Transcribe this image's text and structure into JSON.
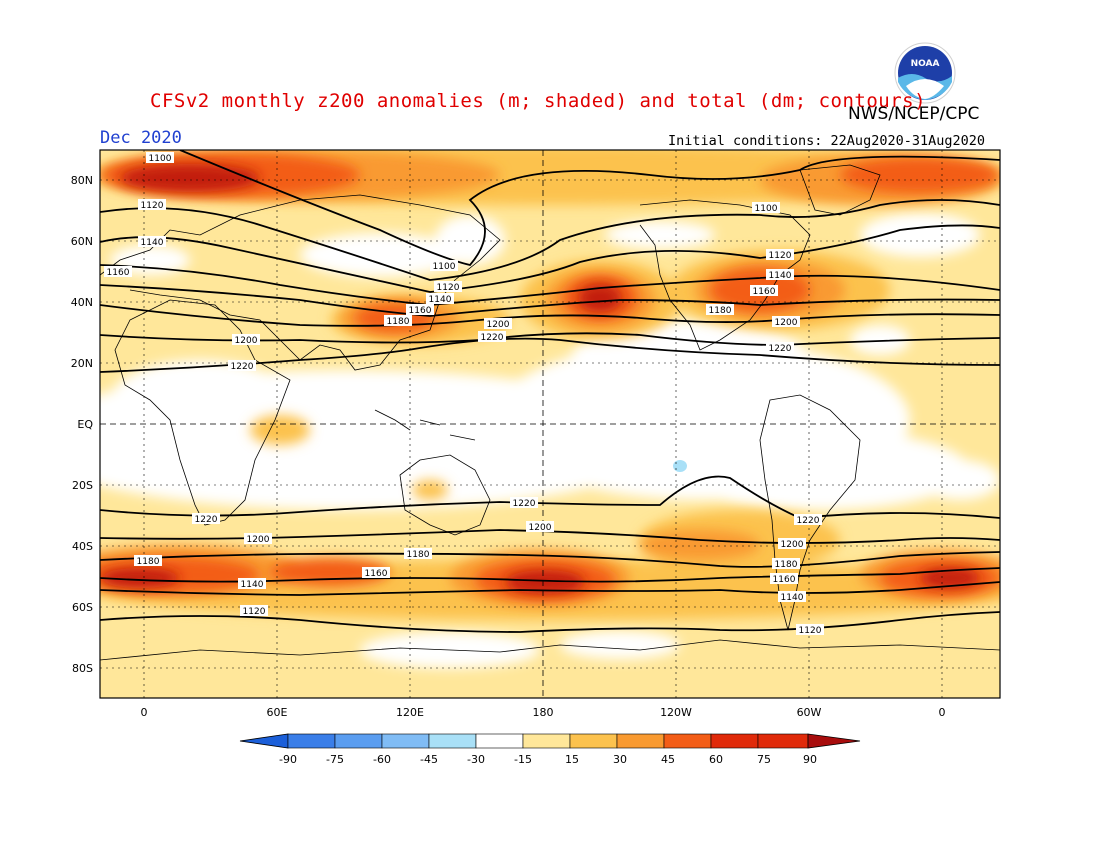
{
  "header": {
    "title": "CFSv2 monthly z200 anomalies (m; shaded) and total (dm; contours)",
    "org": "NWS/NCEP/CPC",
    "month": "Dec 2020",
    "initial_conditions": "Initial conditions: 22Aug2020-31Aug2020",
    "logo_text": "NOAA"
  },
  "map": {
    "lat_labels": [
      "80N",
      "60N",
      "40N",
      "20N",
      "EQ",
      "20S",
      "40S",
      "60S",
      "80S"
    ],
    "lon_labels": [
      "0",
      "60E",
      "120E",
      "180",
      "120W",
      "60W",
      "0"
    ]
  },
  "colorbar": {
    "labels": [
      "-90",
      "-75",
      "-60",
      "-45",
      "-30",
      "-15",
      "15",
      "30",
      "45",
      "60",
      "75",
      "90"
    ],
    "colors": [
      "#1b5fd9",
      "#3a7ee8",
      "#5a9df0",
      "#80bcf5",
      "#a9e0f7",
      "#ffffff",
      "#ffe79a",
      "#fcc24e",
      "#f99a30",
      "#f35d17",
      "#e02a0a",
      "#a80d0d"
    ]
  },
  "contours": {
    "labels_total_dm": [
      "1100",
      "1120",
      "1140",
      "1160",
      "1180",
      "1200",
      "1220"
    ],
    "color": "#000000"
  },
  "colors": {
    "title": "#e00000",
    "month": "#2040d0",
    "weak_positive": "#ffe79a",
    "positive": "#fcc24e",
    "strong_positive": "#f99a30",
    "very_strong_positive": "#f35d17",
    "extreme_positive": "#a80d0d"
  }
}
